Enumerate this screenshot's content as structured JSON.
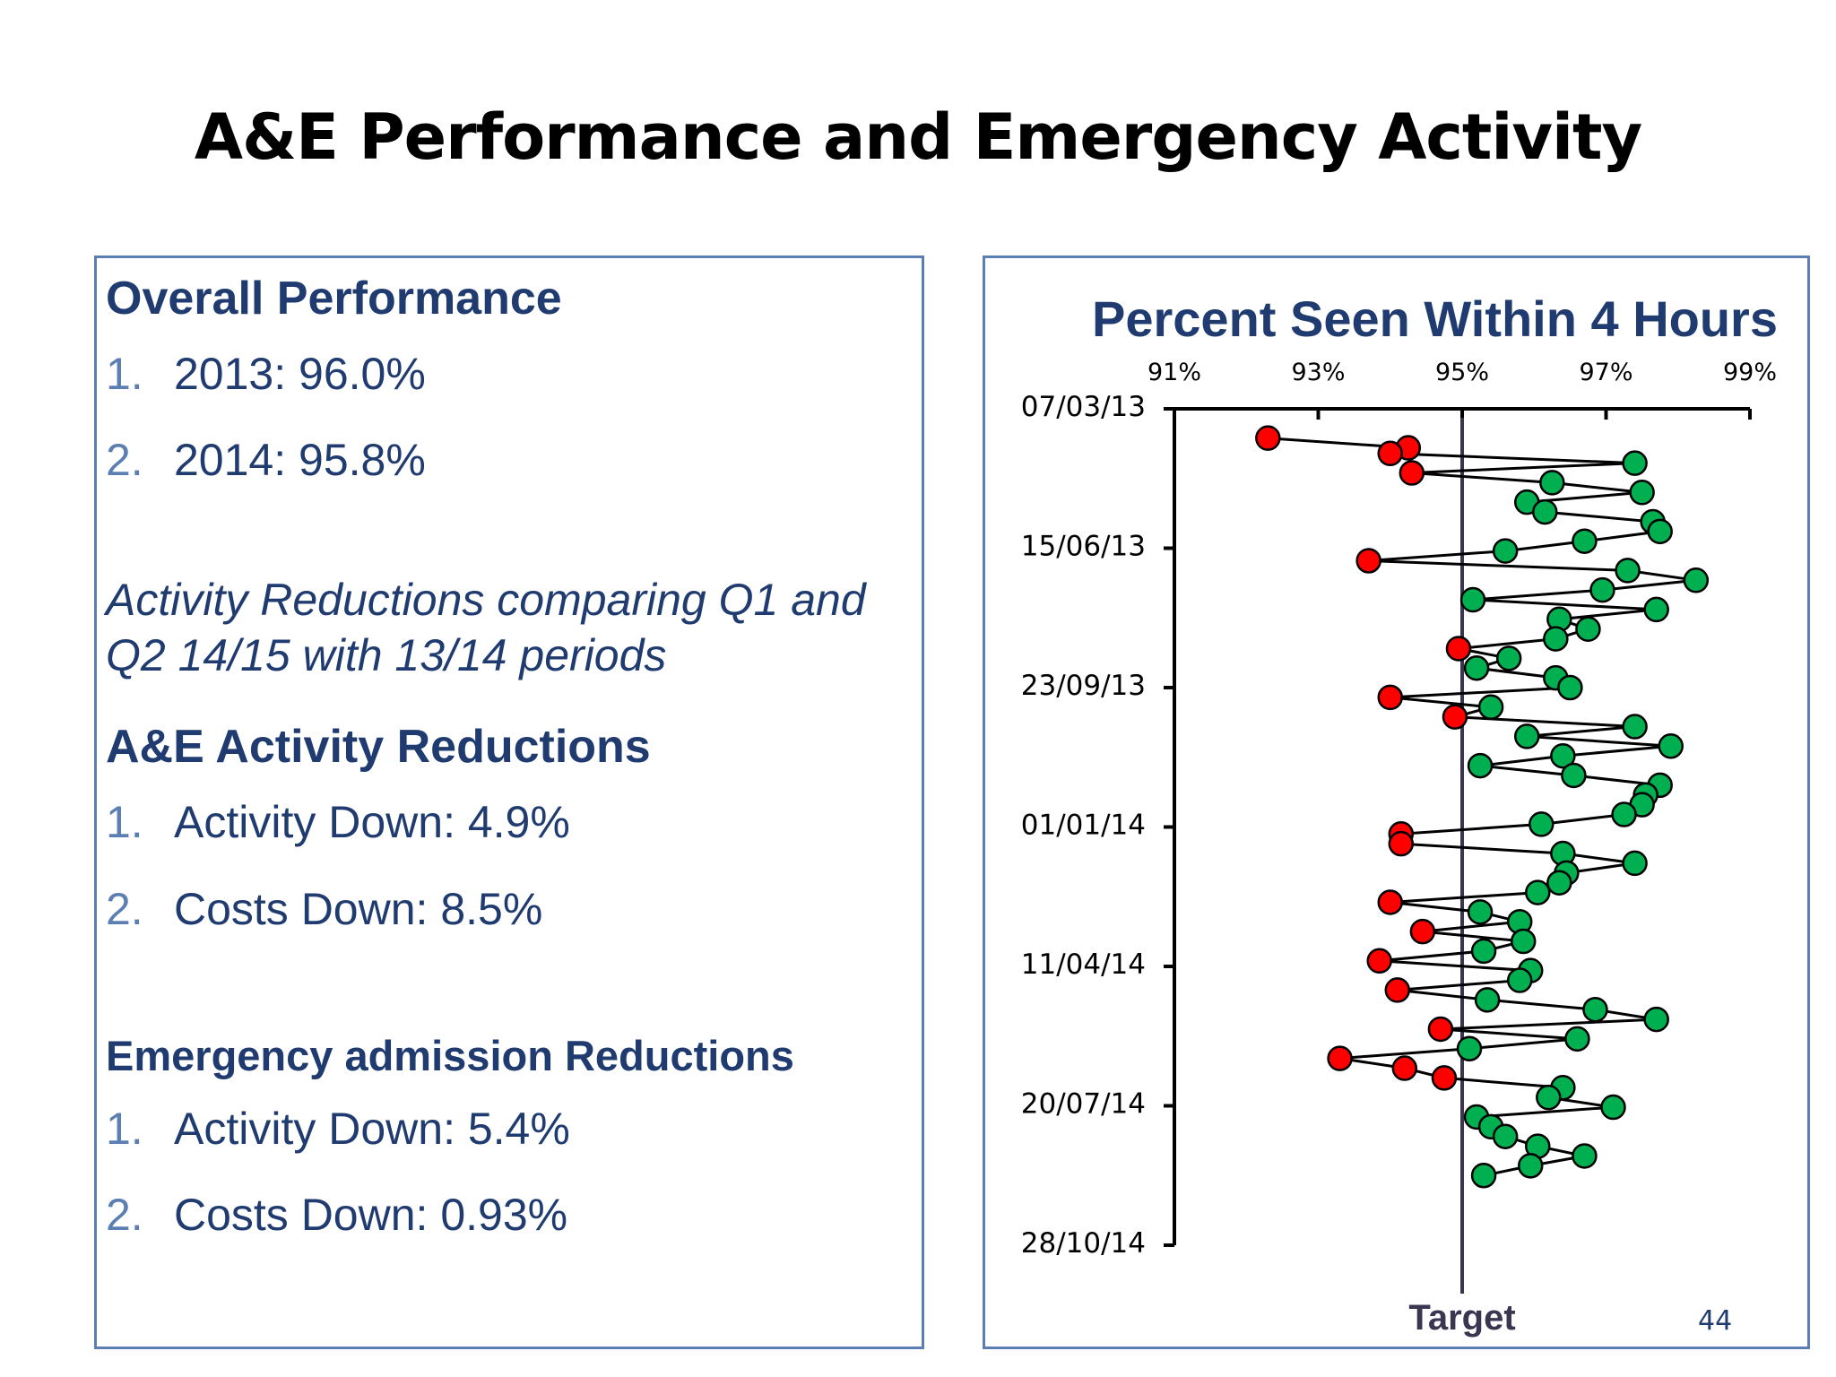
{
  "slide": {
    "title": "A&E Performance and Emergency Activity",
    "page_number": "44"
  },
  "left": {
    "overall_heading": "Overall Performance",
    "overall_items": [
      {
        "num": "1.",
        "text": "2013: 96.0%"
      },
      {
        "num": "2.",
        "text": "2014: 95.8%"
      }
    ],
    "note": "Activity Reductions comparing Q1 and Q2 14/15 with 13/14 periods",
    "ae_heading": "A&E Activity Reductions",
    "ae_items": [
      {
        "num": "1.",
        "text": "Activity Down: 4.9%"
      },
      {
        "num": "2.",
        "text": "Costs Down: 8.5%"
      }
    ],
    "emergency_heading": "Emergency admission Reductions",
    "emergency_items": [
      {
        "num": "1.",
        "text": "Activity Down: 5.4%"
      },
      {
        "num": "2.",
        "text": "Costs Down: 0.93%"
      }
    ]
  },
  "colors": {
    "accent_dark": "#1f3b6f",
    "panel_border": "#5b7fb3",
    "below_target": "#ff0000",
    "above_target": "#00b050",
    "target_line": "#3a3550"
  },
  "chart_data": {
    "type": "scatter",
    "title": "Percent Seen Within 4 Hours",
    "x_ticks": [
      "91%",
      "93%",
      "95%",
      "97%",
      "99%"
    ],
    "xlim": [
      91,
      99
    ],
    "y_ticks": [
      "07/03/13",
      "15/06/13",
      "23/09/13",
      "01/01/14",
      "11/04/14",
      "20/07/14",
      "28/10/14"
    ],
    "ylim": [
      "2013-03-07",
      "2014-10-28"
    ],
    "target_label": "Target",
    "target": 95,
    "points": [
      {
        "date": "2013-03-28",
        "value": 92.3
      },
      {
        "date": "2013-04-04",
        "value": 94.25
      },
      {
        "date": "2013-04-08",
        "value": 94.0
      },
      {
        "date": "2013-04-15",
        "value": 97.4
      },
      {
        "date": "2013-04-22",
        "value": 94.3
      },
      {
        "date": "2013-04-29",
        "value": 96.25
      },
      {
        "date": "2013-05-06",
        "value": 97.5
      },
      {
        "date": "2013-05-13",
        "value": 95.9
      },
      {
        "date": "2013-05-20",
        "value": 96.15
      },
      {
        "date": "2013-05-27",
        "value": 97.65
      },
      {
        "date": "2013-06-03",
        "value": 97.75
      },
      {
        "date": "2013-06-10",
        "value": 96.7
      },
      {
        "date": "2013-06-17",
        "value": 95.6
      },
      {
        "date": "2013-06-24",
        "value": 93.7
      },
      {
        "date": "2013-07-01",
        "value": 97.3
      },
      {
        "date": "2013-07-08",
        "value": 98.25
      },
      {
        "date": "2013-07-15",
        "value": 96.95
      },
      {
        "date": "2013-07-22",
        "value": 95.15
      },
      {
        "date": "2013-07-29",
        "value": 97.7
      },
      {
        "date": "2013-08-05",
        "value": 96.35
      },
      {
        "date": "2013-08-12",
        "value": 96.75
      },
      {
        "date": "2013-08-19",
        "value": 96.3
      },
      {
        "date": "2013-08-26",
        "value": 94.95
      },
      {
        "date": "2013-09-02",
        "value": 95.65
      },
      {
        "date": "2013-09-09",
        "value": 95.2
      },
      {
        "date": "2013-09-16",
        "value": 96.3
      },
      {
        "date": "2013-09-23",
        "value": 96.5
      },
      {
        "date": "2013-09-30",
        "value": 94.0
      },
      {
        "date": "2013-10-07",
        "value": 95.4
      },
      {
        "date": "2013-10-14",
        "value": 94.9
      },
      {
        "date": "2013-10-21",
        "value": 97.4
      },
      {
        "date": "2013-10-28",
        "value": 95.9
      },
      {
        "date": "2013-11-04",
        "value": 97.9
      },
      {
        "date": "2013-11-11",
        "value": 96.4
      },
      {
        "date": "2013-11-18",
        "value": 95.25
      },
      {
        "date": "2013-11-25",
        "value": 96.55
      },
      {
        "date": "2013-12-02",
        "value": 97.75
      },
      {
        "date": "2013-12-09",
        "value": 97.55
      },
      {
        "date": "2013-12-16",
        "value": 97.5
      },
      {
        "date": "2013-12-23",
        "value": 97.25
      },
      {
        "date": "2013-12-30",
        "value": 96.1
      },
      {
        "date": "2014-01-06",
        "value": 94.15
      },
      {
        "date": "2014-01-13",
        "value": 94.15
      },
      {
        "date": "2014-01-20",
        "value": 96.4
      },
      {
        "date": "2014-01-27",
        "value": 97.4
      },
      {
        "date": "2014-02-03",
        "value": 96.45
      },
      {
        "date": "2014-02-10",
        "value": 96.35
      },
      {
        "date": "2014-02-17",
        "value": 96.05
      },
      {
        "date": "2014-02-24",
        "value": 94.0
      },
      {
        "date": "2014-03-03",
        "value": 95.25
      },
      {
        "date": "2014-03-10",
        "value": 95.8
      },
      {
        "date": "2014-03-17",
        "value": 94.45
      },
      {
        "date": "2014-03-24",
        "value": 95.85
      },
      {
        "date": "2014-03-31",
        "value": 95.3
      },
      {
        "date": "2014-04-07",
        "value": 93.85
      },
      {
        "date": "2014-04-14",
        "value": 95.95
      },
      {
        "date": "2014-04-21",
        "value": 95.8
      },
      {
        "date": "2014-04-28",
        "value": 94.1
      },
      {
        "date": "2014-05-05",
        "value": 95.35
      },
      {
        "date": "2014-05-12",
        "value": 96.85
      },
      {
        "date": "2014-05-19",
        "value": 97.7
      },
      {
        "date": "2014-05-26",
        "value": 94.7
      },
      {
        "date": "2014-06-02",
        "value": 96.6
      },
      {
        "date": "2014-06-09",
        "value": 95.1
      },
      {
        "date": "2014-06-16",
        "value": 93.3
      },
      {
        "date": "2014-06-23",
        "value": 94.2
      },
      {
        "date": "2014-06-30",
        "value": 94.75
      },
      {
        "date": "2014-07-07",
        "value": 96.4
      },
      {
        "date": "2014-07-14",
        "value": 96.2
      },
      {
        "date": "2014-07-21",
        "value": 97.1
      },
      {
        "date": "2014-07-28",
        "value": 95.2
      },
      {
        "date": "2014-08-04",
        "value": 95.4
      },
      {
        "date": "2014-08-11",
        "value": 95.6
      },
      {
        "date": "2014-08-18",
        "value": 96.05
      },
      {
        "date": "2014-08-25",
        "value": 96.7
      },
      {
        "date": "2014-09-01",
        "value": 95.95
      },
      {
        "date": "2014-09-08",
        "value": 95.3
      }
    ]
  }
}
